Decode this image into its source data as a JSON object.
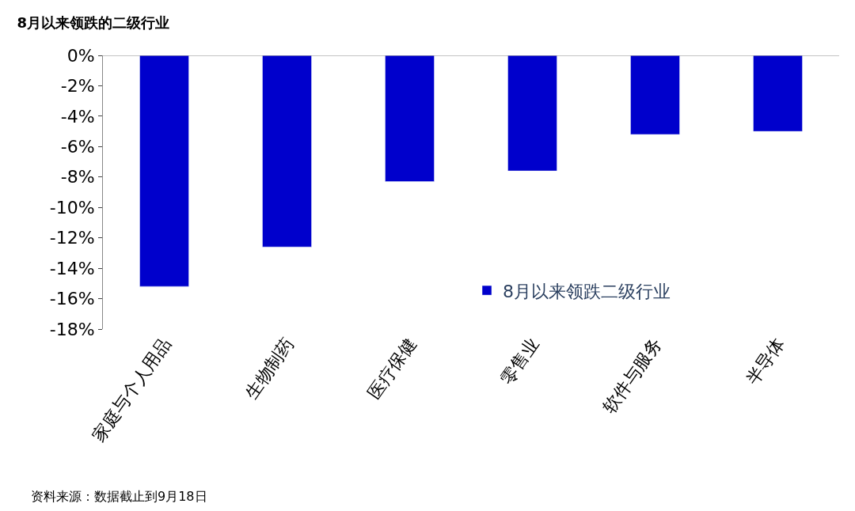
{
  "chart_data": {
    "type": "bar",
    "title": "8月以来领跌的二级行业",
    "categories": [
      "家庭与个人用品",
      "生物制药",
      "医疗保健",
      "零售业",
      "软件与服务",
      "半导体"
    ],
    "series": [
      {
        "name": "8月以来领跌二级行业",
        "color": "#0000cc",
        "values": [
          -15.2,
          -12.6,
          -8.3,
          -7.6,
          -5.2,
          -5.0
        ]
      }
    ],
    "ylim": [
      -18,
      0
    ],
    "yticks": [
      {
        "value": 0,
        "label": "0%"
      },
      {
        "value": -2,
        "label": "-2%"
      },
      {
        "value": -4,
        "label": "-4%"
      },
      {
        "value": -6,
        "label": "-6%"
      },
      {
        "value": -8,
        "label": "-8%"
      },
      {
        "value": -10,
        "label": "-10%"
      },
      {
        "value": -12,
        "label": "-12%"
      },
      {
        "value": -14,
        "label": "-14%"
      },
      {
        "value": -16,
        "label": "-16%"
      },
      {
        "value": -18,
        "label": "-18%"
      }
    ],
    "legend": "bottom right",
    "annotations": [
      "资料来源：数据截止到9月18日"
    ]
  }
}
